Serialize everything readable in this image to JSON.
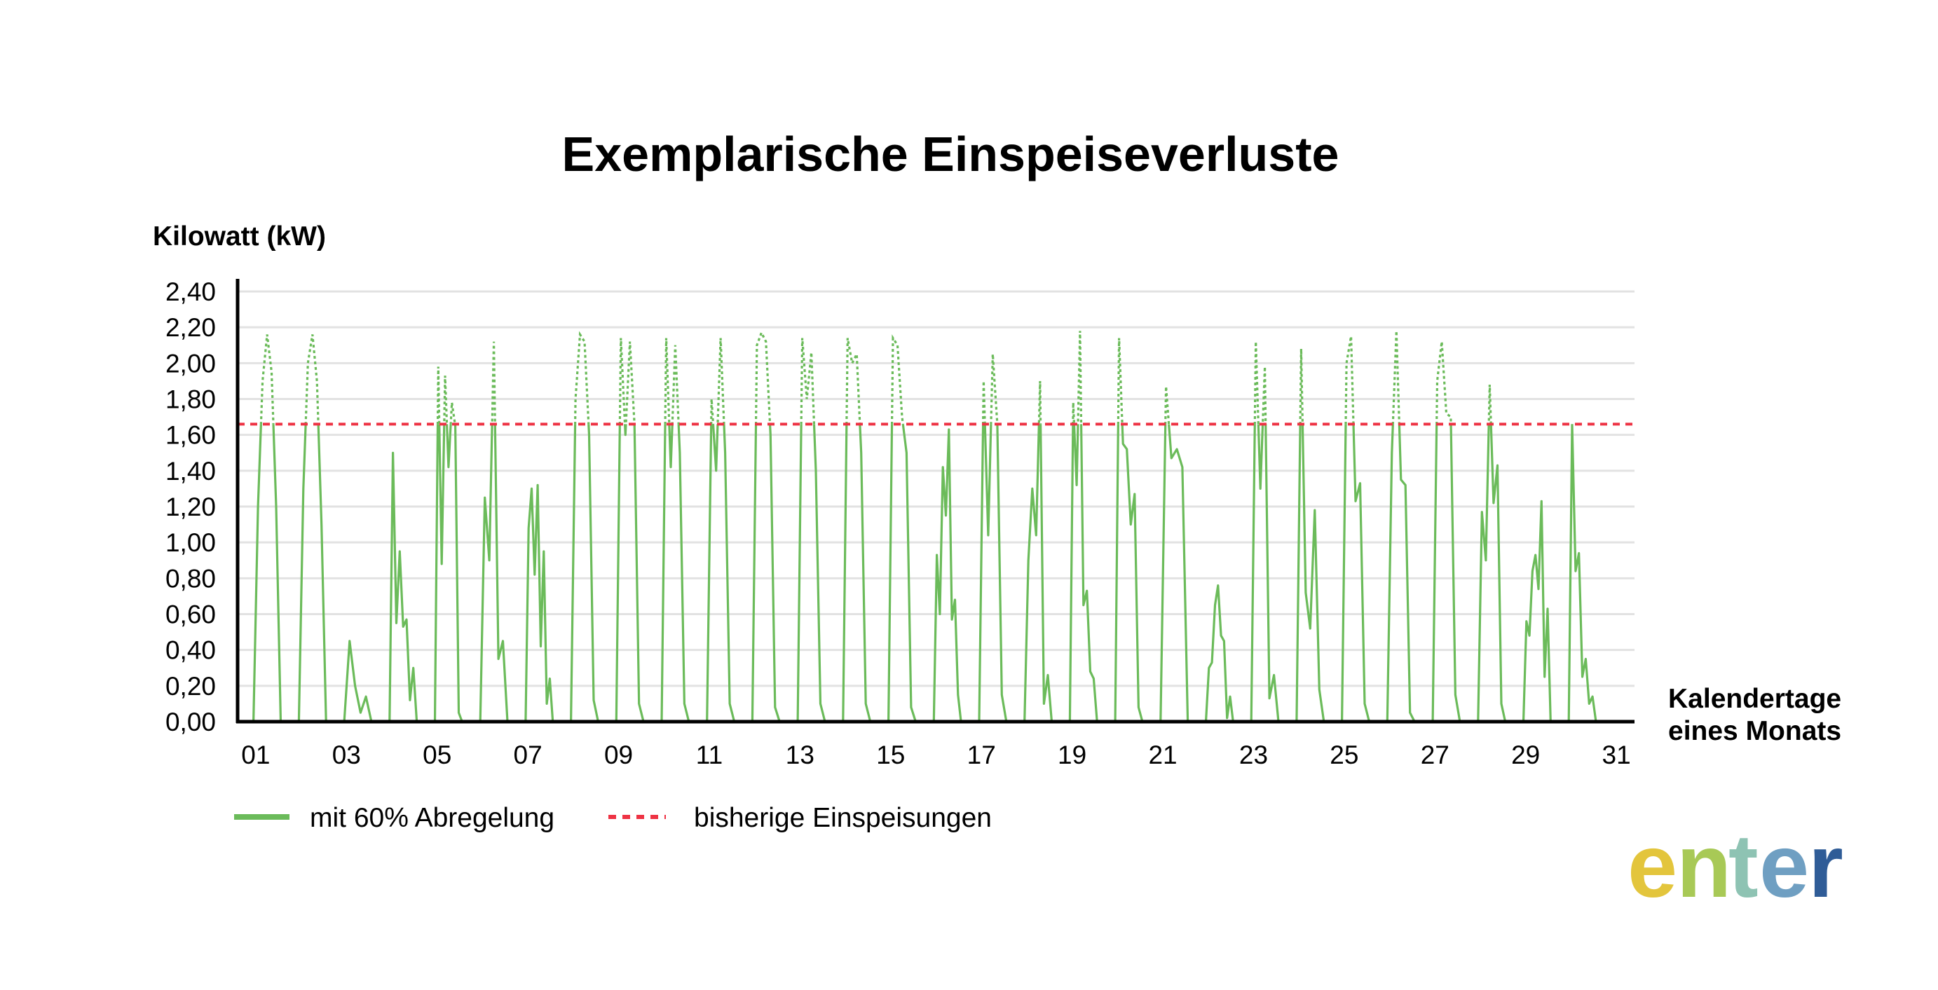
{
  "chart_data": {
    "type": "line",
    "title": "Exemplarische Einspeiseverluste",
    "ylabel": "Kilowatt (kW)",
    "xlabel_lines": [
      "Kalendertage",
      "eines Monats"
    ],
    "ylim": [
      0,
      2.4
    ],
    "y_ticks": [
      "0,00",
      "0,20",
      "0,40",
      "0,60",
      "0,80",
      "1,00",
      "1,20",
      "1,40",
      "1,60",
      "1,80",
      "2,00",
      "2,20",
      "2,40"
    ],
    "x_tick_labels": [
      "01",
      "03",
      "05",
      "07",
      "09",
      "11",
      "13",
      "15",
      "17",
      "19",
      "21",
      "23",
      "25",
      "27",
      "29",
      "31"
    ],
    "x_tick_days": [
      1,
      3,
      5,
      7,
      9,
      11,
      13,
      15,
      17,
      19,
      21,
      23,
      25,
      27,
      29,
      31
    ],
    "xlim": [
      0.6,
      31.4
    ],
    "grid": true,
    "threshold": {
      "name": "bisherige Einspeisungen",
      "value": 1.66,
      "color": "#ee3344"
    },
    "series": [
      {
        "name": "mit 60% Abregelung",
        "color": "#6bbb5a",
        "note": "day: [start_hour_fraction, end_hour_fraction, [daily profile kW...]]",
        "days": [
          {
            "day": 1,
            "profile": [
              0,
              1.2,
              1.9,
              2.16,
              1.95,
              1.2,
              0
            ]
          },
          {
            "day": 2,
            "profile": [
              0,
              1.3,
              2.0,
              2.16,
              1.9,
              1.1,
              0
            ]
          },
          {
            "day": 3,
            "profile": [
              0,
              0.45,
              0.2,
              0.05,
              0.14,
              0
            ]
          },
          {
            "day": 4,
            "profile": [
              0,
              1.5,
              0.55,
              0.95,
              0.53,
              0.57,
              0.12,
              0.3,
              0
            ]
          },
          {
            "day": 5,
            "profile": [
              0,
              1.98,
              0.88,
              1.93,
              1.42,
              1.78,
              1.65,
              0.05,
              0
            ]
          },
          {
            "day": 6,
            "profile": [
              0,
              1.25,
              0.9,
              2.12,
              0.35,
              0.45,
              0
            ]
          },
          {
            "day": 7,
            "profile": [
              0,
              1.08,
              1.3,
              0.82,
              1.32,
              0.42,
              0.95,
              0.1,
              0.24,
              0
            ]
          },
          {
            "day": 8,
            "profile": [
              0,
              1.8,
              2.16,
              2.12,
              1.6,
              0.12,
              0
            ]
          },
          {
            "day": 9,
            "profile": [
              0,
              2.14,
              1.6,
              2.12,
              1.66,
              0.1,
              0
            ]
          },
          {
            "day": 10,
            "profile": [
              0,
              2.14,
              1.42,
              2.1,
              1.5,
              0.1,
              0
            ]
          },
          {
            "day": 11,
            "profile": [
              0,
              1.8,
              1.4,
              2.14,
              1.5,
              0.1,
              0
            ]
          },
          {
            "day": 12,
            "profile": [
              0,
              2.1,
              2.17,
              2.12,
              1.6,
              0.08,
              0
            ]
          },
          {
            "day": 13,
            "profile": [
              0,
              2.14,
              1.8,
              2.06,
              1.4,
              0.1,
              0
            ]
          },
          {
            "day": 14,
            "profile": [
              0,
              2.14,
              2.0,
              2.05,
              1.5,
              0.1,
              0
            ]
          },
          {
            "day": 15,
            "profile": [
              0,
              2.14,
              2.1,
              1.7,
              1.5,
              0.08,
              0
            ]
          },
          {
            "day": 16,
            "profile": [
              0,
              0.93,
              0.6,
              1.42,
              1.15,
              1.63,
              0.57,
              0.68,
              0.15,
              0
            ]
          },
          {
            "day": 17,
            "profile": [
              0,
              1.9,
              1.04,
              2.05,
              1.66,
              0.15,
              0
            ]
          },
          {
            "day": 18,
            "profile": [
              0,
              0.9,
              1.3,
              1.04,
              1.9,
              0.1,
              0.26,
              0
            ]
          },
          {
            "day": 19,
            "profile": [
              0,
              1.78,
              1.32,
              2.18,
              0.65,
              0.73,
              0.28,
              0.24,
              0
            ]
          },
          {
            "day": 20,
            "profile": [
              0,
              2.14,
              1.55,
              1.52,
              1.1,
              1.27,
              0.08,
              0
            ]
          },
          {
            "day": 21,
            "profile": [
              0,
              1.87,
              1.47,
              1.52,
              1.42,
              0
            ]
          },
          {
            "day": 22,
            "profile": [
              0,
              0.3,
              0.33,
              0.65,
              0.76,
              0.48,
              0.45,
              0.02,
              0.14,
              0
            ]
          },
          {
            "day": 23,
            "profile": [
              0,
              2.12,
              1.3,
              1.98,
              0.13,
              0.26,
              0
            ]
          },
          {
            "day": 24,
            "profile": [
              0,
              2.08,
              0.72,
              0.52,
              1.18,
              0.18,
              0
            ]
          },
          {
            "day": 25,
            "profile": [
              0,
              2.0,
              2.15,
              1.23,
              1.33,
              0.1,
              0
            ]
          },
          {
            "day": 26,
            "profile": [
              0,
              1.5,
              2.18,
              1.35,
              1.32,
              0.05,
              0
            ]
          },
          {
            "day": 27,
            "profile": [
              0,
              1.9,
              2.12,
              1.72,
              1.7,
              0.15,
              0
            ]
          },
          {
            "day": 28,
            "profile": [
              0,
              1.17,
              0.9,
              1.88,
              1.22,
              1.43,
              0.1,
              0
            ]
          },
          {
            "day": 29,
            "profile": [
              0,
              0.56,
              0.48,
              0.84,
              0.93,
              0.74,
              1.23,
              0.25,
              0.63,
              0
            ]
          },
          {
            "day": 30,
            "profile": [
              0,
              1.66,
              0.84,
              0.94,
              0.25,
              0.35,
              0.1,
              0.14,
              0
            ]
          }
        ]
      }
    ],
    "legend_position": "bottom-left"
  }
}
